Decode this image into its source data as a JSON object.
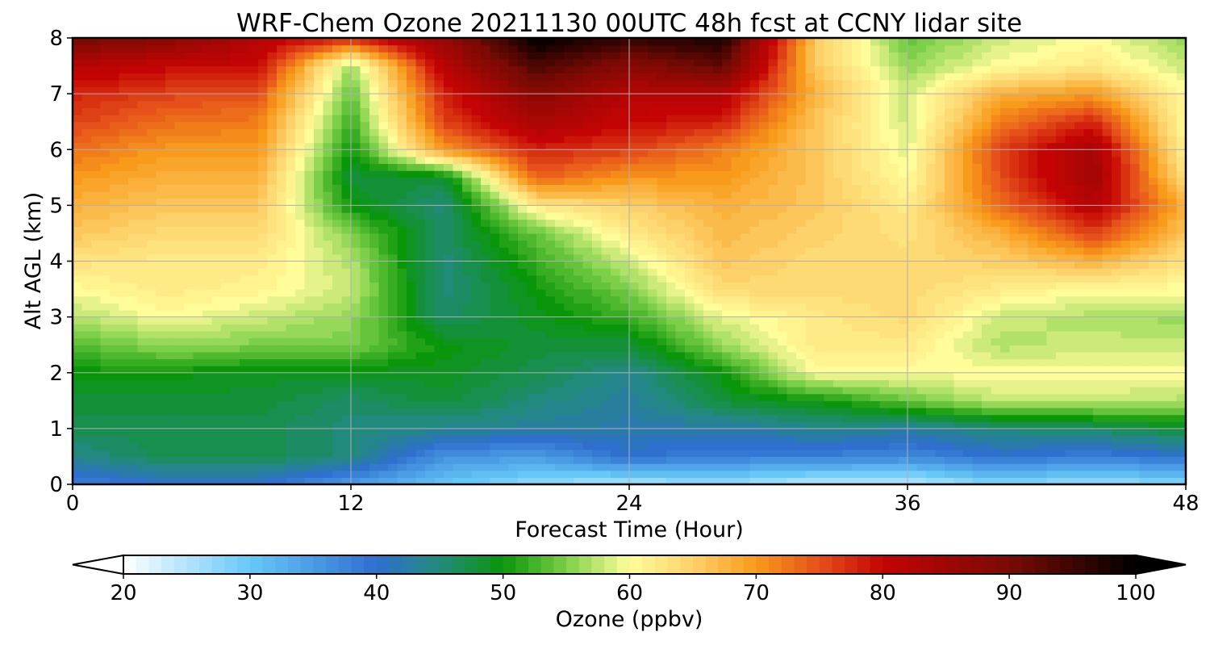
{
  "chart_data": {
    "type": "heatmap",
    "title": "WRF-Chem Ozone  20211130 00UTC 48h fcst at CCNY lidar site",
    "xlabel": "Forecast Time (Hour)",
    "ylabel": "Alt AGL (km)",
    "xlim": [
      0,
      48
    ],
    "ylim": [
      0,
      8
    ],
    "x_ticks": [
      "0",
      "12",
      "24",
      "36",
      "48"
    ],
    "y_ticks": [
      "0",
      "1",
      "2",
      "3",
      "4",
      "5",
      "6",
      "7",
      "8"
    ],
    "grid": true,
    "x_hours": [
      0,
      4,
      8,
      12,
      16,
      20,
      24,
      28,
      32,
      36,
      40,
      44,
      48
    ],
    "y_km": [
      0,
      0.5,
      1,
      1.5,
      2,
      2.5,
      3,
      3.5,
      4,
      4.5,
      5,
      5.5,
      6,
      6.5,
      7,
      7.5,
      8
    ],
    "ozone_ppbv": [
      [
        38,
        40,
        40,
        35,
        30,
        27,
        25,
        27,
        24,
        24,
        28,
        26,
        28
      ],
      [
        44,
        47,
        47,
        45,
        36,
        35,
        40,
        38,
        38,
        37,
        40,
        38,
        40
      ],
      [
        47,
        47,
        47,
        45,
        44,
        43,
        42,
        42,
        44,
        43,
        45,
        46,
        48
      ],
      [
        48,
        48,
        48,
        46,
        48,
        45,
        43,
        48,
        50,
        54,
        58,
        58,
        57
      ],
      [
        50,
        50,
        49,
        49,
        49,
        47,
        44,
        50,
        60,
        60,
        60,
        60,
        60
      ],
      [
        53,
        56,
        55,
        55,
        50,
        48,
        48,
        56,
        62,
        62,
        57,
        58,
        58
      ],
      [
        57,
        60,
        58,
        56,
        46,
        49,
        52,
        59,
        62,
        64,
        58,
        57,
        56
      ],
      [
        60,
        62,
        61,
        58,
        45,
        50,
        55,
        64,
        64,
        64,
        62,
        60,
        60
      ],
      [
        63,
        62,
        62,
        57,
        45,
        52,
        58,
        66,
        64,
        64,
        65,
        68,
        63
      ],
      [
        66,
        64,
        64,
        55,
        46,
        54,
        62,
        67,
        65,
        63,
        68,
        76,
        66
      ],
      [
        68,
        66,
        66,
        50,
        45,
        62,
        65,
        68,
        66,
        62,
        73,
        82,
        68
      ],
      [
        70,
        68,
        68,
        48,
        48,
        74,
        70,
        70,
        66,
        60,
        75,
        85,
        63
      ],
      [
        73,
        70,
        70,
        50,
        70,
        78,
        76,
        72,
        66,
        59,
        76,
        84,
        61
      ],
      [
        76,
        73,
        72,
        52,
        76,
        84,
        80,
        78,
        66,
        58,
        72,
        78,
        60
      ],
      [
        78,
        76,
        75,
        54,
        78,
        88,
        82,
        82,
        68,
        58,
        68,
        70,
        60
      ],
      [
        82,
        80,
        80,
        56,
        82,
        94,
        88,
        92,
        66,
        56,
        60,
        62,
        58
      ],
      [
        90,
        88,
        82,
        78,
        86,
        100,
        96,
        98,
        66,
        54,
        58,
        60,
        56
      ]
    ],
    "colorbar": {
      "label": "Ozone  (ppbv)",
      "ticks": [
        "20",
        "30",
        "40",
        "50",
        "60",
        "70",
        "80",
        "90",
        "100"
      ],
      "range": [
        20,
        100
      ],
      "extend": "both",
      "stops": [
        {
          "value": 20,
          "color": "#ffffff"
        },
        {
          "value": 30,
          "color": "#66c8f8"
        },
        {
          "value": 40,
          "color": "#2f6fcf"
        },
        {
          "value": 45,
          "color": "#228a7c"
        },
        {
          "value": 50,
          "color": "#0a960a"
        },
        {
          "value": 55,
          "color": "#7ccf48"
        },
        {
          "value": 60,
          "color": "#fffc9a"
        },
        {
          "value": 65,
          "color": "#fdd16a"
        },
        {
          "value": 70,
          "color": "#f89a1a"
        },
        {
          "value": 75,
          "color": "#e6501a"
        },
        {
          "value": 80,
          "color": "#c40404"
        },
        {
          "value": 90,
          "color": "#7a0a04"
        },
        {
          "value": 100,
          "color": "#000000"
        }
      ]
    }
  }
}
